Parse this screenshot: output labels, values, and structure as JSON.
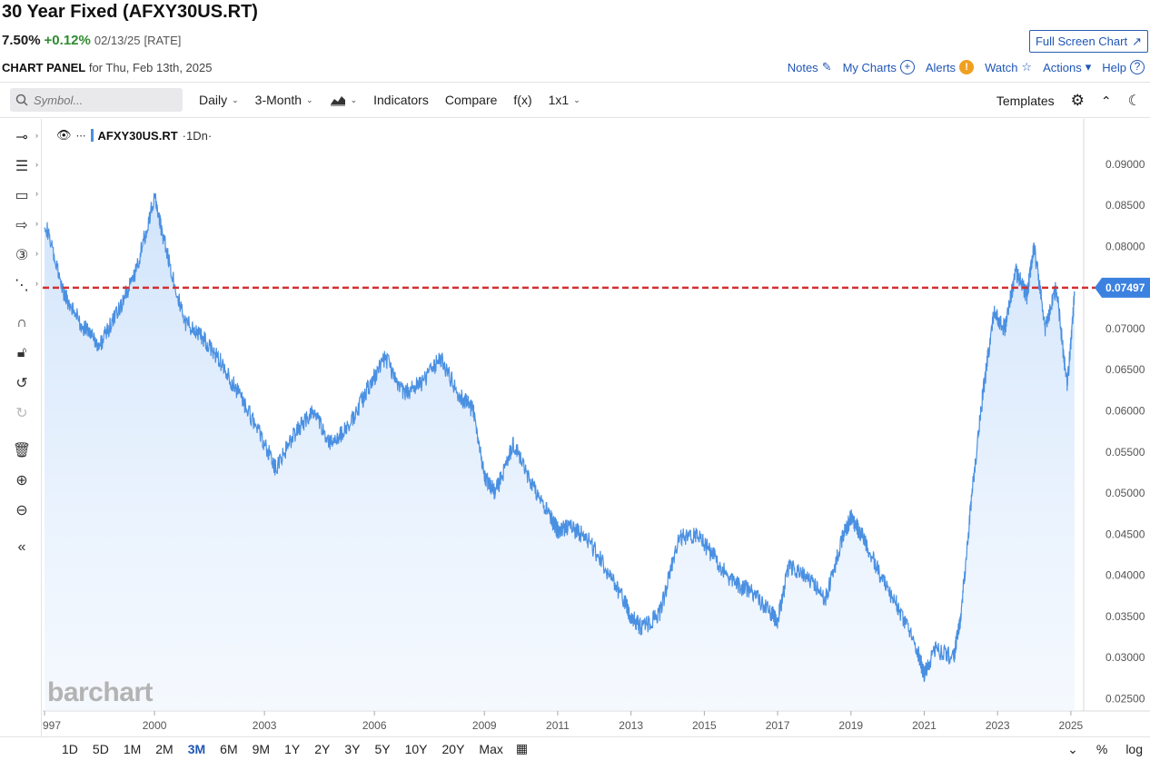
{
  "header": {
    "title": "30 Year Fixed (AFXY30US.RT)",
    "last": "7.50%",
    "change": "+0.12%",
    "date": "02/13/25",
    "type": "[RATE]",
    "fullscreen_label": "Full Screen Chart"
  },
  "panel": {
    "label": "CHART PANEL",
    "date_text": "for Thu, Feb 13th, 2025",
    "links": [
      "Notes",
      "My Charts",
      "Alerts",
      "Watch",
      "Actions",
      "Help"
    ]
  },
  "toolbar": {
    "search_placeholder": "Symbol...",
    "interval": "Daily",
    "period": "3-Month",
    "indicators": "Indicators",
    "compare": "Compare",
    "fx": "f(x)",
    "layout": "1x1",
    "templates": "Templates"
  },
  "legend": {
    "symbol": "AFXY30US.RT",
    "interval": "·1Dn·"
  },
  "watermark": "barchart",
  "ranges": [
    "1D",
    "5D",
    "1M",
    "2M",
    "3M",
    "6M",
    "9M",
    "1Y",
    "2Y",
    "3Y",
    "5Y",
    "10Y",
    "20Y",
    "Max"
  ],
  "active_range": "3M",
  "bottom_right": [
    "%",
    "log"
  ],
  "colors": {
    "line": "#4a90e2",
    "last_price": "#d32f2f",
    "price_tag": "#3b82e0",
    "accent": "#1f56b5"
  },
  "chart_data": {
    "type": "area",
    "title": "",
    "xlabel": "",
    "ylabel": "",
    "x_ticks": [
      "997",
      "2000",
      "2003",
      "2006",
      "2009",
      "2011",
      "2013",
      "2015",
      "2017",
      "2019",
      "2021",
      "2023",
      "2025"
    ],
    "y_ticks": [
      "0.09000",
      "0.08500",
      "0.08000",
      "0.07500",
      "0.07000",
      "0.06500",
      "0.06000",
      "0.05500",
      "0.05000",
      "0.04500",
      "0.04000",
      "0.03500",
      "0.03000",
      "0.02500"
    ],
    "ylim": [
      0.0235,
      0.0955
    ],
    "last_value": 0.07497,
    "last_value_label": "0.07497",
    "series": [
      {
        "x": [
          1997.0,
          1997.5,
          1998.0,
          1998.5,
          1999.0,
          1999.5,
          2000.0,
          2000.3,
          2000.8,
          2001.3,
          2001.8,
          2002.3,
          2002.8,
          2003.3,
          2003.8,
          2004.3,
          2004.8,
          2005.3,
          2005.8,
          2006.3,
          2006.8,
          2007.3,
          2007.8,
          2008.3,
          2008.7,
          2009.0,
          2009.3,
          2009.8,
          2010.3,
          2010.8,
          2011.0,
          2011.3,
          2011.8,
          2012.3,
          2012.8,
          2013.0,
          2013.3,
          2013.8,
          2014.3,
          2014.8,
          2015.3,
          2015.8,
          2016.3,
          2016.8,
          2017.0,
          2017.3,
          2017.8,
          2018.3,
          2018.8,
          2019.0,
          2019.3,
          2019.8,
          2020.3,
          2020.8,
          2021.0,
          2021.3,
          2021.8,
          2022.0,
          2022.3,
          2022.6,
          2022.9,
          2023.2,
          2023.5,
          2023.8,
          2024.0,
          2024.3,
          2024.6,
          2024.9,
          2025.1
        ],
        "y": [
          0.0832,
          0.0745,
          0.0705,
          0.068,
          0.072,
          0.077,
          0.086,
          0.08,
          0.071,
          0.069,
          0.066,
          0.062,
          0.058,
          0.053,
          0.057,
          0.06,
          0.056,
          0.058,
          0.0625,
          0.0665,
          0.062,
          0.0635,
          0.0665,
          0.062,
          0.06,
          0.052,
          0.05,
          0.056,
          0.051,
          0.047,
          0.0455,
          0.046,
          0.0445,
          0.041,
          0.037,
          0.035,
          0.0335,
          0.0355,
          0.0445,
          0.045,
          0.042,
          0.039,
          0.038,
          0.0355,
          0.0345,
          0.041,
          0.04,
          0.037,
          0.045,
          0.047,
          0.045,
          0.04,
          0.036,
          0.031,
          0.028,
          0.031,
          0.03,
          0.035,
          0.05,
          0.062,
          0.072,
          0.07,
          0.077,
          0.074,
          0.08,
          0.07,
          0.075,
          0.063,
          0.074
        ]
      }
    ]
  }
}
